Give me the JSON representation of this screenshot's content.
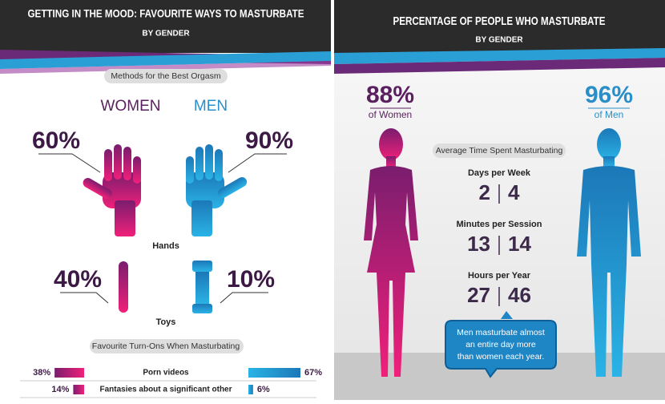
{
  "left": {
    "title": "GETTING IN THE MOOD: FAVOURITE WAYS TO MASTURBATE",
    "subtitle": "BY GENDER",
    "methods_heading": "Methods for the Best Orgasm",
    "women_label": "WOMEN",
    "men_label": "MEN",
    "hands": {
      "women": "60%",
      "men": "90%",
      "label": "Hands"
    },
    "toys": {
      "women": "40%",
      "men": "10%",
      "label": "Toys"
    },
    "turn_ons_heading": "Favourite Turn-Ons When Masturbating",
    "turn_ons": [
      {
        "name": "Porn videos",
        "values": [
          38,
          67
        ],
        "value_labels": [
          "38%",
          "67%"
        ]
      },
      {
        "name": "Fantasies about a significant other",
        "values": [
          14,
          6
        ],
        "value_labels": [
          "14%",
          "6%"
        ]
      }
    ]
  },
  "right": {
    "title": "PERCENTAGE OF PEOPLE WHO MASTURBATE",
    "subtitle": "BY GENDER",
    "women": {
      "percent": "88%",
      "label": "of Women"
    },
    "men": {
      "percent": "96%",
      "label": "of Men"
    },
    "stats_heading": "Average Time Spent Masturbating",
    "stats": [
      {
        "label": "Days per Week",
        "values": [
          2,
          4
        ]
      },
      {
        "label": "Minutes per Session",
        "values": [
          13,
          14
        ]
      },
      {
        "label": "Hours per Year",
        "values": [
          27,
          46
        ]
      }
    ],
    "callout": [
      "Men masturbate almost",
      "an entire day more",
      "than women each year."
    ]
  }
}
